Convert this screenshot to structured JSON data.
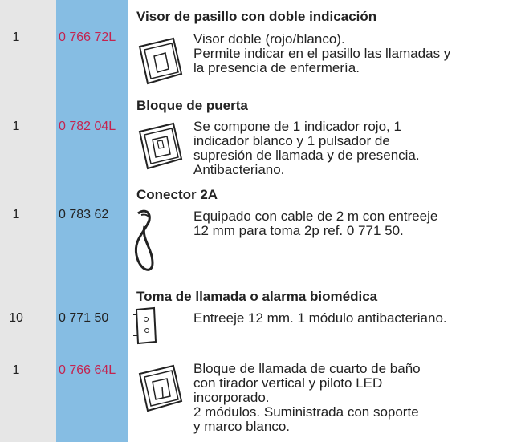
{
  "items": [
    {
      "qty": "1",
      "ref": "0 766 72L",
      "ref_color": "#c4234f",
      "title": "Visor de pasillo con doble indicación",
      "description": [
        "Visor doble (rojo/blanco).",
        "Permite indicar en el pasillo las llamadas y",
        "la presencia de enfermería."
      ]
    },
    {
      "qty": "1",
      "ref": "0 782 04L",
      "ref_color": "#c4234f",
      "title": "Bloque de puerta",
      "description": [
        "Se compone de 1 indicador rojo, 1",
        "indicador blanco y 1 pulsador de",
        "supresión de llamada y de presencia.",
        "Antibacteriano."
      ]
    },
    {
      "qty": "1",
      "ref": "0 783 62",
      "ref_color": "#222222",
      "title": "Conector 2A",
      "description": [
        "Equipado con cable de 2 m con entreeje",
        "12 mm para toma 2p ref. 0 771 50."
      ]
    },
    {
      "qty": "10",
      "ref": "0 771 50",
      "ref_color": "#222222",
      "title": "Toma de llamada o alarma biomédica",
      "description": [
        "Entreeje 12 mm. 1 módulo antibacteriano."
      ]
    },
    {
      "qty": "1",
      "ref": "0 766 64L",
      "ref_color": "#c4234f",
      "description": [
        "Bloque de llamada de cuarto de baño",
        "con tirador vertical y piloto LED",
        "incorporado.",
        "2 módulos. Suministrada con soporte",
        "y marco blanco."
      ]
    }
  ]
}
